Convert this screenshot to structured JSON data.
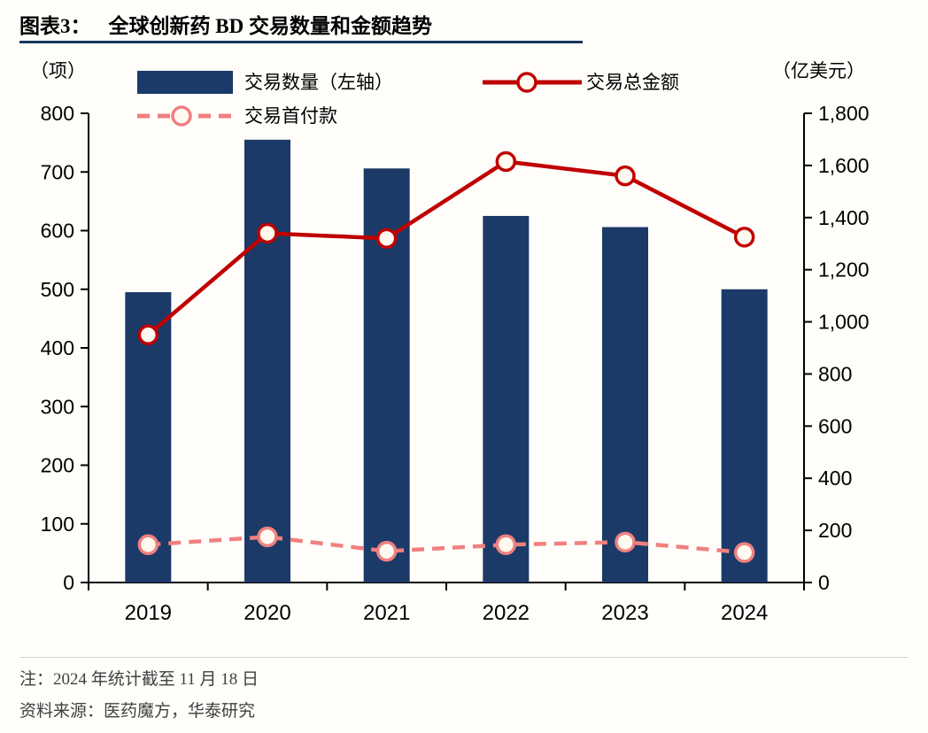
{
  "header": {
    "title_prefix": "图表3：",
    "title": "全球创新药 BD 交易数量和金额趋势"
  },
  "colors": {
    "bar": "#1B3A68",
    "line": "#C00000",
    "dashed": "#F08080",
    "marker_fill": "#FFF9F0",
    "accent": "#17375E",
    "background": "#FFFEFA"
  },
  "footer": {
    "note": "注：2024 年统计截至 11 月 18 日",
    "source": "资料来源：医药魔方，华泰研究"
  },
  "chart_data": {
    "type": "combo",
    "title": "全球创新药 BD 交易数量和金额趋势",
    "categories": [
      "2019",
      "2020",
      "2021",
      "2022",
      "2023",
      "2024"
    ],
    "series": [
      {
        "name": "交易数量（左轴）",
        "type": "bar",
        "axis": "left",
        "values": [
          495,
          755,
          706,
          625,
          606,
          500
        ]
      },
      {
        "name": "交易总金额",
        "type": "line",
        "axis": "right",
        "values": [
          950,
          1340,
          1320,
          1615,
          1560,
          1325
        ]
      },
      {
        "name": "交易首付款",
        "type": "line-dashed",
        "axis": "right",
        "values": [
          145,
          175,
          120,
          145,
          155,
          115
        ]
      }
    ],
    "left_axis": {
      "unit": "（项）",
      "min": 0,
      "max": 800,
      "step": 100
    },
    "right_axis": {
      "unit": "（亿美元）",
      "min": 0,
      "max": 1800,
      "step": 200
    },
    "grid": false,
    "legend_position": "top"
  }
}
